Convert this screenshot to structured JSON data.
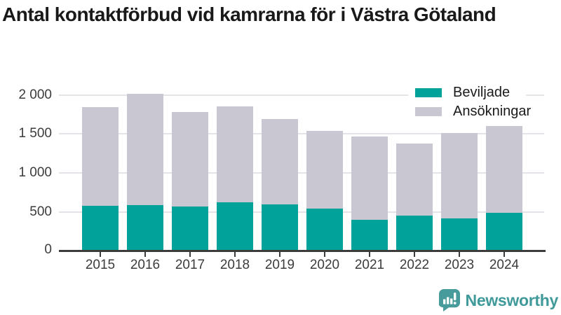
{
  "header": {
    "title": "Antal kontaktförbud vid kamrarna för i Västra Götaland"
  },
  "chart_data": {
    "type": "bar",
    "title": "Antal kontaktförbud vid kamrarna för i Västra Götaland",
    "categories": [
      "2015",
      "2016",
      "2017",
      "2018",
      "2019",
      "2020",
      "2021",
      "2022",
      "2023",
      "2024"
    ],
    "series": [
      {
        "name": "Ansökningar",
        "color": "#c9c8d2",
        "values": [
          1840,
          2010,
          1780,
          1850,
          1690,
          1540,
          1465,
          1380,
          1510,
          1600
        ]
      },
      {
        "name": "Beviljade",
        "color": "#00a29a",
        "values": [
          585,
          590,
          575,
          625,
          600,
          545,
          405,
          455,
          420,
          490
        ]
      }
    ],
    "overlay_note": "Beviljade bars are drawn in front of the full-height Ansökningar bars",
    "ylim": [
      0,
      2000
    ],
    "yticks": [
      0,
      500,
      1000,
      1500,
      2000
    ],
    "ytick_labels": [
      "0",
      "500",
      "1 000",
      "1 500",
      "2 000"
    ],
    "grid": true,
    "legend_position": "top-right"
  },
  "legend": {
    "items": [
      {
        "label": "Beviljade",
        "color": "#00a29a"
      },
      {
        "label": "Ansökningar",
        "color": "#c9c8d2"
      }
    ]
  },
  "branding": {
    "logo_text": "Newsworthy",
    "accent_color": "#3f9a99"
  },
  "colors": {
    "granted": "#00a29a",
    "applications": "#c9c8d2",
    "axis": "#3c3c3c",
    "grid": "#e4e4e8",
    "title": "#191919"
  }
}
